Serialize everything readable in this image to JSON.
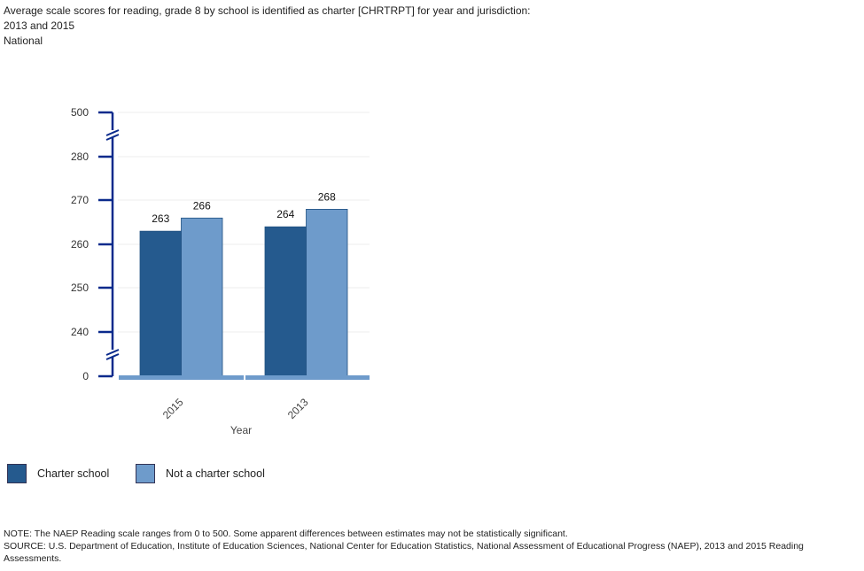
{
  "title": "Average scale scores for reading, grade 8 by school is identified as charter [CHRTRPT] for year and jurisdiction: 2013 and 2015",
  "subtitle": "National",
  "chart_data": {
    "type": "bar",
    "xlabel": "Year",
    "ylabel": "",
    "categories": [
      "2015",
      "2013"
    ],
    "yticks": [
      500,
      280,
      270,
      260,
      250,
      240,
      0
    ],
    "axis_breaks": true,
    "grid": true,
    "legend_placement": "bottom-left",
    "series": [
      {
        "name": "Charter school",
        "values": [
          263,
          264
        ],
        "color": "#255a8e"
      },
      {
        "name": "Not a charter school",
        "values": [
          266,
          268
        ],
        "color": "#6e9bcb"
      }
    ]
  },
  "notes": {
    "note": "NOTE:  The NAEP Reading scale ranges from 0 to 500. Some apparent differences between estimates may not be statistically significant.",
    "source": "SOURCE: U.S. Department of Education, Institute of Education Sciences, National Center for Education Statistics, National Assessment of Educational Progress (NAEP), 2013 and 2015 Reading Assessments."
  }
}
